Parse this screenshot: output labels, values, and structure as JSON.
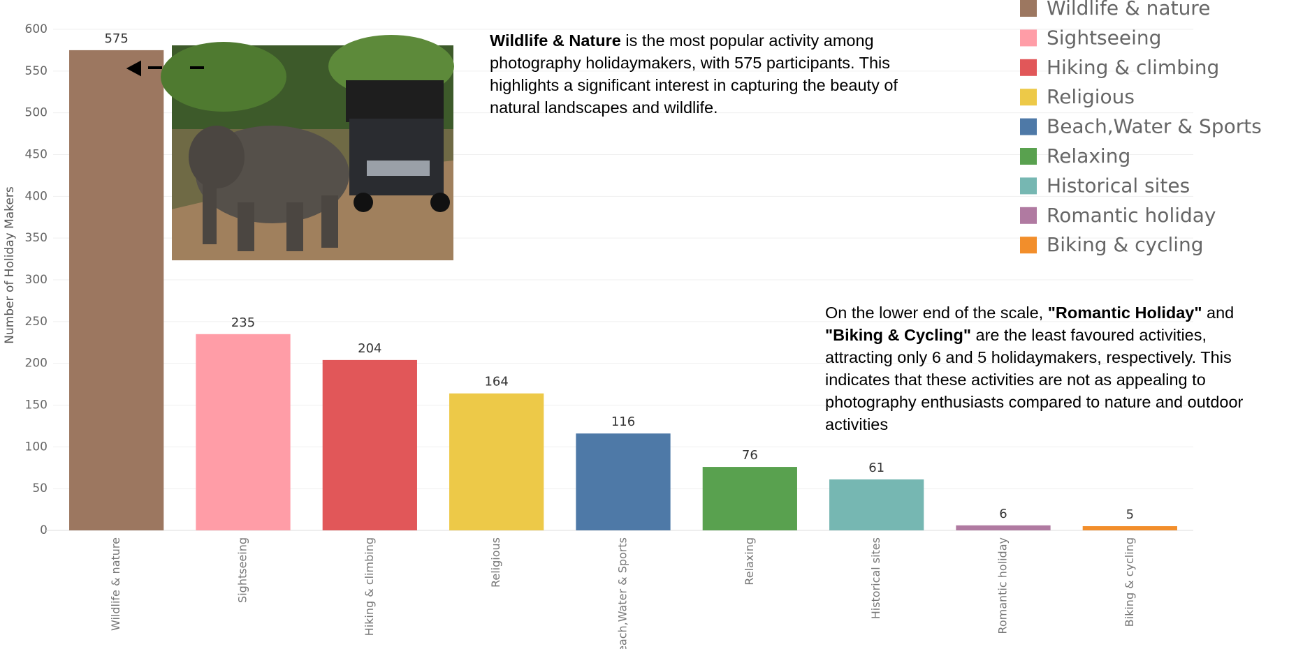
{
  "chart_data": {
    "type": "bar",
    "y_label": "Number of Holiday Makers",
    "categories": [
      "Wildlife & nature",
      "Sightseeing",
      "Hiking & climbing",
      "Religious",
      "Beach,Water & Sports",
      "Relaxing",
      "Historical sites",
      "Romantic holiday",
      "Biking & cycling"
    ],
    "values": [
      575,
      235,
      204,
      164,
      116,
      76,
      61,
      6,
      5
    ],
    "colors": [
      "#9c7760",
      "#ff9da7",
      "#e15759",
      "#edc948",
      "#4e79a7",
      "#59a14f",
      "#76b7b2",
      "#b07aa1",
      "#f28e2b"
    ],
    "ylim": [
      0,
      600
    ],
    "yticks": [
      0,
      50,
      100,
      150,
      200,
      250,
      300,
      350,
      400,
      450,
      500,
      550,
      600
    ],
    "grid": true,
    "legend": "top-right",
    "annotations": [
      [
        {
          "text": "Wildlife & Nature",
          "bold": true
        },
        {
          "text": " is the most popular activity among photography holidaymakers, with 575 participants. This highlights a significant interest in capturing the beauty of natural landscapes and wildlife.",
          "bold": false
        }
      ],
      [
        {
          "text": "On the lower end of the scale, ",
          "bold": false
        },
        {
          "text": "\"Romantic Holiday\"",
          "bold": true
        },
        {
          "text": " and ",
          "bold": false
        },
        {
          "text": "\"Biking & Cycling\"",
          "bold": true
        },
        {
          "text": " are the least favoured activities, attracting only 6 and 5 holidaymakers, respectively. This indicates that these activities are not as appealing to photography enthusiasts compared to nature and outdoor activities",
          "bold": false
        }
      ]
    ]
  }
}
